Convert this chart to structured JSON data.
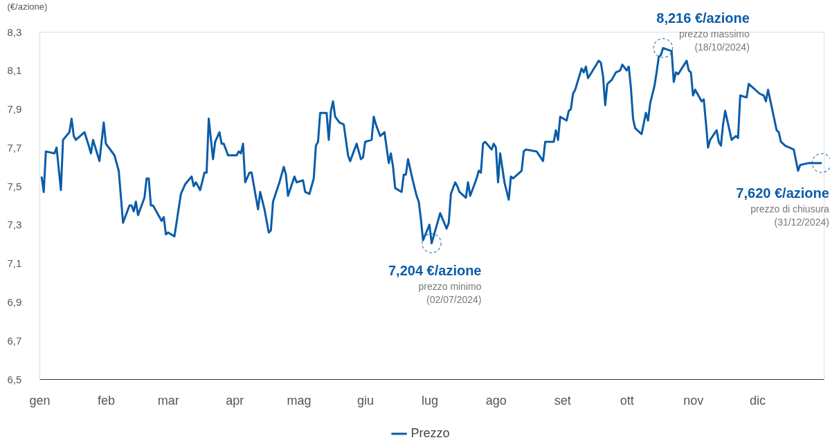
{
  "chart_data": {
    "type": "line",
    "ylabel": "(€/azione)",
    "x": [
      "2024-01-02",
      "2024-01-03",
      "2024-01-04",
      "2024-01-08",
      "2024-01-09",
      "2024-01-11",
      "2024-01-12",
      "2024-01-15",
      "2024-01-16",
      "2024-01-17",
      "2024-01-18",
      "2024-01-22",
      "2024-01-24",
      "2024-01-25",
      "2024-01-26",
      "2024-01-29",
      "2024-01-31",
      "2024-02-01",
      "2024-02-05",
      "2024-02-07",
      "2024-02-09",
      "2024-02-12",
      "2024-02-13",
      "2024-02-14",
      "2024-02-15",
      "2024-02-16",
      "2024-02-19",
      "2024-02-20",
      "2024-02-21",
      "2024-02-22",
      "2024-02-23",
      "2024-02-27",
      "2024-02-28",
      "2024-02-29",
      "2024-03-01",
      "2024-03-04",
      "2024-03-07",
      "2024-03-09",
      "2024-03-12",
      "2024-03-13",
      "2024-03-14",
      "2024-03-16",
      "2024-03-18",
      "2024-03-19",
      "2024-03-20",
      "2024-03-22",
      "2024-03-23",
      "2024-03-25",
      "2024-03-26",
      "2024-03-27",
      "2024-03-29",
      "2024-04-02",
      "2024-04-03",
      "2024-04-04",
      "2024-04-05",
      "2024-04-06",
      "2024-04-08",
      "2024-04-09",
      "2024-04-12",
      "2024-04-13",
      "2024-04-15",
      "2024-04-17",
      "2024-04-18",
      "2024-04-19",
      "2024-04-22",
      "2024-04-24",
      "2024-04-25",
      "2024-04-26",
      "2024-04-29",
      "2024-04-30",
      "2024-05-03",
      "2024-05-04",
      "2024-05-06",
      "2024-05-08",
      "2024-05-09",
      "2024-05-10",
      "2024-05-11",
      "2024-05-14",
      "2024-05-15",
      "2024-05-16",
      "2024-05-17",
      "2024-05-18",
      "2024-05-20",
      "2024-05-22",
      "2024-05-24",
      "2024-05-25",
      "2024-05-28",
      "2024-05-30",
      "2024-05-31",
      "2024-06-01",
      "2024-06-04",
      "2024-06-05",
      "2024-06-06",
      "2024-06-08",
      "2024-06-10",
      "2024-06-12",
      "2024-06-13",
      "2024-06-14",
      "2024-06-15",
      "2024-06-18",
      "2024-06-19",
      "2024-06-20",
      "2024-06-21",
      "2024-06-23",
      "2024-06-25",
      "2024-06-26",
      "2024-06-27",
      "2024-06-28",
      "2024-07-01",
      "2024-07-02",
      "2024-07-06",
      "2024-07-09",
      "2024-07-10",
      "2024-07-11",
      "2024-07-13",
      "2024-07-14",
      "2024-07-15",
      "2024-07-18",
      "2024-07-19",
      "2024-07-20",
      "2024-07-23",
      "2024-07-24",
      "2024-07-25",
      "2024-07-26",
      "2024-07-27",
      "2024-07-30",
      "2024-07-31",
      "2024-08-01",
      "2024-08-02",
      "2024-08-03",
      "2024-08-05",
      "2024-08-07",
      "2024-08-08",
      "2024-08-09",
      "2024-08-13",
      "2024-08-14",
      "2024-08-15",
      "2024-08-20",
      "2024-08-23",
      "2024-08-24",
      "2024-08-28",
      "2024-08-29",
      "2024-08-30",
      "2024-08-31",
      "2024-09-03",
      "2024-09-04",
      "2024-09-05",
      "2024-09-06",
      "2024-09-07",
      "2024-09-10",
      "2024-09-11",
      "2024-09-12",
      "2024-09-13",
      "2024-09-18",
      "2024-09-19",
      "2024-09-20",
      "2024-09-21",
      "2024-09-22",
      "2024-09-24",
      "2024-09-25",
      "2024-09-26",
      "2024-09-28",
      "2024-09-29",
      "2024-10-01",
      "2024-10-02",
      "2024-10-03",
      "2024-10-04",
      "2024-10-05",
      "2024-10-08",
      "2024-10-10",
      "2024-10-11",
      "2024-10-12",
      "2024-10-14",
      "2024-10-15",
      "2024-10-16",
      "2024-10-17",
      "2024-10-18",
      "2024-10-22",
      "2024-10-23",
      "2024-10-24",
      "2024-10-25",
      "2024-10-29",
      "2024-10-30",
      "2024-10-31",
      "2024-11-01",
      "2024-11-02",
      "2024-11-05",
      "2024-11-06",
      "2024-11-07",
      "2024-11-08",
      "2024-11-09",
      "2024-11-12",
      "2024-11-13",
      "2024-11-14",
      "2024-11-15",
      "2024-11-16",
      "2024-11-19",
      "2024-11-21",
      "2024-11-22",
      "2024-11-23",
      "2024-11-26",
      "2024-11-27",
      "2024-11-29",
      "2024-12-02",
      "2024-12-04",
      "2024-12-05",
      "2024-12-06",
      "2024-12-10",
      "2024-12-11",
      "2024-12-12",
      "2024-12-14",
      "2024-12-18",
      "2024-12-20",
      "2024-12-21",
      "2024-12-25",
      "2024-12-31"
    ],
    "series": [
      {
        "name": "Prezzo",
        "color": "#0a5ca8",
        "values": [
          7.55,
          7.47,
          7.68,
          7.67,
          7.7,
          7.48,
          7.74,
          7.78,
          7.85,
          7.76,
          7.74,
          7.78,
          7.71,
          7.67,
          7.74,
          7.63,
          7.83,
          7.72,
          7.66,
          7.58,
          7.31,
          7.4,
          7.4,
          7.37,
          7.42,
          7.35,
          7.44,
          7.54,
          7.54,
          7.4,
          7.4,
          7.32,
          7.34,
          7.25,
          7.26,
          7.24,
          7.46,
          7.51,
          7.55,
          7.5,
          7.52,
          7.48,
          7.57,
          7.57,
          7.85,
          7.64,
          7.73,
          7.78,
          7.72,
          7.72,
          7.66,
          7.66,
          7.68,
          7.67,
          7.72,
          7.52,
          7.57,
          7.57,
          7.38,
          7.47,
          7.38,
          7.26,
          7.27,
          7.42,
          7.52,
          7.6,
          7.56,
          7.45,
          7.55,
          7.52,
          7.53,
          7.47,
          7.46,
          7.54,
          7.71,
          7.73,
          7.88,
          7.88,
          7.74,
          7.89,
          7.94,
          7.86,
          7.83,
          7.82,
          7.66,
          7.63,
          7.72,
          7.64,
          7.65,
          7.73,
          7.74,
          7.86,
          7.82,
          7.76,
          7.78,
          7.62,
          7.67,
          7.6,
          7.49,
          7.47,
          7.56,
          7.56,
          7.64,
          7.54,
          7.45,
          7.42,
          7.33,
          7.22,
          7.3,
          7.204,
          7.36,
          7.28,
          7.31,
          7.46,
          7.52,
          7.5,
          7.47,
          7.44,
          7.52,
          7.45,
          7.54,
          7.58,
          7.57,
          7.72,
          7.73,
          7.69,
          7.72,
          7.7,
          7.52,
          7.67,
          7.52,
          7.43,
          7.55,
          7.54,
          7.58,
          7.68,
          7.69,
          7.68,
          7.63,
          7.73,
          7.73,
          7.79,
          7.74,
          7.86,
          7.84,
          7.89,
          7.9,
          7.98,
          8.0,
          8.11,
          8.09,
          8.12,
          8.06,
          8.15,
          8.14,
          8.07,
          7.92,
          8.03,
          8.05,
          8.07,
          8.09,
          8.1,
          8.13,
          8.1,
          8.12,
          8.01,
          7.85,
          7.8,
          7.77,
          7.88,
          7.84,
          7.93,
          8.02,
          8.09,
          8.17,
          8.18,
          8.216,
          8.2,
          8.04,
          8.09,
          8.08,
          8.15,
          8.1,
          8.09,
          7.97,
          8.0,
          7.94,
          7.95,
          7.83,
          7.7,
          7.74,
          7.79,
          7.73,
          7.71,
          7.82,
          7.89,
          7.74,
          7.76,
          7.75,
          7.97,
          7.96,
          8.03,
          8.01,
          7.98,
          7.97,
          7.94,
          8.0,
          7.79,
          7.78,
          7.73,
          7.71,
          7.69,
          7.58,
          7.61,
          7.62,
          7.62
        ]
      }
    ],
    "ylim": [
      6.5,
      8.3
    ],
    "yticks": [
      {
        "value": 6.5,
        "label": "6,5"
      },
      {
        "value": 6.7,
        "label": "6,7"
      },
      {
        "value": 6.9,
        "label": "6,9"
      },
      {
        "value": 7.1,
        "label": "7,1"
      },
      {
        "value": 7.3,
        "label": "7,3"
      },
      {
        "value": 7.5,
        "label": "7,5"
      },
      {
        "value": 7.7,
        "label": "7,7"
      },
      {
        "value": 7.9,
        "label": "7,9"
      },
      {
        "value": 8.1,
        "label": "8,1"
      },
      {
        "value": 8.3,
        "label": "8,3"
      }
    ],
    "xlim": [
      "2024-01-01",
      "2025-01-01"
    ],
    "xticks": [
      {
        "value": "2024-01-01",
        "label": "gen"
      },
      {
        "value": "2024-02-01",
        "label": "feb"
      },
      {
        "value": "2024-03-01",
        "label": "mar"
      },
      {
        "value": "2024-04-01",
        "label": "apr"
      },
      {
        "value": "2024-05-01",
        "label": "mag"
      },
      {
        "value": "2024-06-01",
        "label": "giu"
      },
      {
        "value": "2024-07-01",
        "label": "lug"
      },
      {
        "value": "2024-08-01",
        "label": "ago"
      },
      {
        "value": "2024-09-01",
        "label": "set"
      },
      {
        "value": "2024-10-01",
        "label": "ott"
      },
      {
        "value": "2024-11-01",
        "label": "nov"
      },
      {
        "value": "2024-12-01",
        "label": "dic"
      }
    ],
    "annotations": [
      {
        "text": "7,204 €/azione\nprezzo minimo\n(02/07/2024)",
        "x": "2024-07-02",
        "y": 7.204
      },
      {
        "text": "8,216 €/azione\nprezzo massimo\n(18/10/2024)",
        "x": "2024-10-18",
        "y": 8.216
      },
      {
        "text": "7,620 €/azione\nprezzo di chiusura\n(31/12/2024)",
        "x": "2024-12-31",
        "y": 7.62
      }
    ],
    "grid": false,
    "legend": "bottom",
    "marker": "none",
    "line_style": "solid"
  }
}
